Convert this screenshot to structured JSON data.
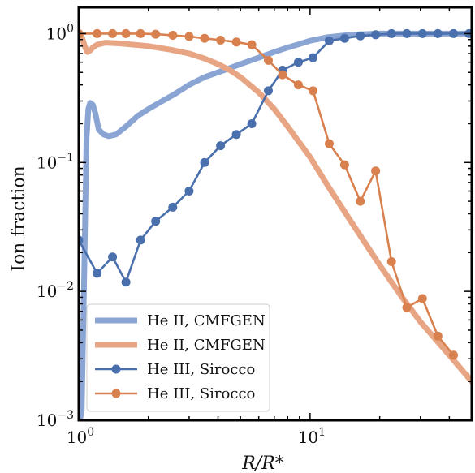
{
  "chart_data": {
    "type": "line",
    "xlabel": "R/R*",
    "ylabel": "Ion fraction",
    "xscale": "log",
    "yscale": "log",
    "xlim": [
      1.0,
      50.0
    ],
    "ylim": [
      0.001,
      1.6
    ],
    "xticks": [
      {
        "value": 1,
        "label": "10",
        "exp": "0"
      },
      {
        "value": 10,
        "label": "10",
        "exp": "1"
      }
    ],
    "yticks": [
      {
        "value": 0.001,
        "label": "10",
        "exp": "−3"
      },
      {
        "value": 0.01,
        "label": "10",
        "exp": "−2"
      },
      {
        "value": 0.1,
        "label": "10",
        "exp": "−1"
      },
      {
        "value": 1.0,
        "label": "10",
        "exp": "0"
      }
    ],
    "grid": false,
    "legend": "lower-left",
    "series": [
      {
        "name": "He II, CMFGEN",
        "style": "thick-line",
        "color": "#8aa5d4",
        "x": [
          1.0,
          1.03,
          1.06,
          1.08,
          1.1,
          1.12,
          1.15,
          1.18,
          1.22,
          1.28,
          1.35,
          1.45,
          1.6,
          1.8,
          2.0,
          2.3,
          2.6,
          3.0,
          3.5,
          4.0,
          4.5,
          5.0,
          6.0,
          7.0,
          8.0,
          9.0,
          10.0,
          12.0,
          15.0,
          20.0,
          30.0,
          50.0
        ],
        "y": [
          0.0009,
          0.0012,
          0.02,
          0.15,
          0.26,
          0.29,
          0.28,
          0.24,
          0.18,
          0.165,
          0.16,
          0.165,
          0.19,
          0.23,
          0.26,
          0.3,
          0.34,
          0.4,
          0.46,
          0.5,
          0.54,
          0.58,
          0.65,
          0.72,
          0.78,
          0.83,
          0.88,
          0.94,
          0.98,
          1.0,
          1.0,
          1.0
        ]
      },
      {
        "name": "He II, CMFGEN",
        "style": "thick-line",
        "color": "#e8a584",
        "x": [
          1.0,
          1.03,
          1.06,
          1.09,
          1.12,
          1.15,
          1.2,
          1.3,
          1.5,
          2.0,
          2.5,
          3.0,
          3.5,
          4.0,
          4.5,
          5.0,
          6.0,
          7.0,
          8.0,
          10.0,
          12.0,
          15.0,
          20.0,
          25.0,
          30.0,
          40.0,
          50.0
        ],
        "y": [
          1.0,
          0.95,
          0.8,
          0.72,
          0.74,
          0.78,
          0.82,
          0.85,
          0.84,
          0.8,
          0.75,
          0.7,
          0.64,
          0.58,
          0.52,
          0.46,
          0.35,
          0.26,
          0.19,
          0.11,
          0.065,
          0.035,
          0.016,
          0.009,
          0.0058,
          0.0032,
          0.002
        ]
      },
      {
        "name": "He III, Sirocco",
        "style": "line-markers",
        "color": "#4a6fad",
        "x": [
          1.0,
          1.2,
          1.4,
          1.6,
          1.85,
          2.15,
          2.55,
          3.0,
          3.5,
          4.1,
          4.8,
          5.6,
          6.6,
          7.6,
          8.9,
          10.3,
          12.1,
          14.1,
          16.5,
          19.2,
          22.5,
          26.2,
          30.6,
          35.7,
          41.7,
          48.7
        ],
        "y": [
          0.025,
          0.0138,
          0.0185,
          0.0118,
          0.025,
          0.035,
          0.045,
          0.06,
          0.1,
          0.135,
          0.165,
          0.2,
          0.36,
          0.52,
          0.6,
          0.65,
          0.88,
          0.92,
          0.96,
          0.98,
          1.0,
          1.0,
          1.0,
          1.0,
          1.0,
          1.0
        ]
      },
      {
        "name": "He III, Sirocco",
        "style": "line-markers",
        "color": "#d9804f",
        "x": [
          1.0,
          1.2,
          1.4,
          1.6,
          1.85,
          2.15,
          2.55,
          3.0,
          3.5,
          4.1,
          4.8,
          5.6,
          6.6,
          7.6,
          8.9,
          10.3,
          12.1,
          14.1,
          16.5,
          19.2,
          22.5,
          26.2,
          30.6,
          35.7,
          41.7
        ],
        "y": [
          1.0,
          1.0,
          1.0,
          1.0,
          1.0,
          0.99,
          0.97,
          0.95,
          0.92,
          0.89,
          0.86,
          0.82,
          0.62,
          0.48,
          0.4,
          0.36,
          0.14,
          0.096,
          0.05,
          0.086,
          0.017,
          0.0075,
          0.0088,
          0.0045,
          0.0032
        ]
      }
    ]
  }
}
